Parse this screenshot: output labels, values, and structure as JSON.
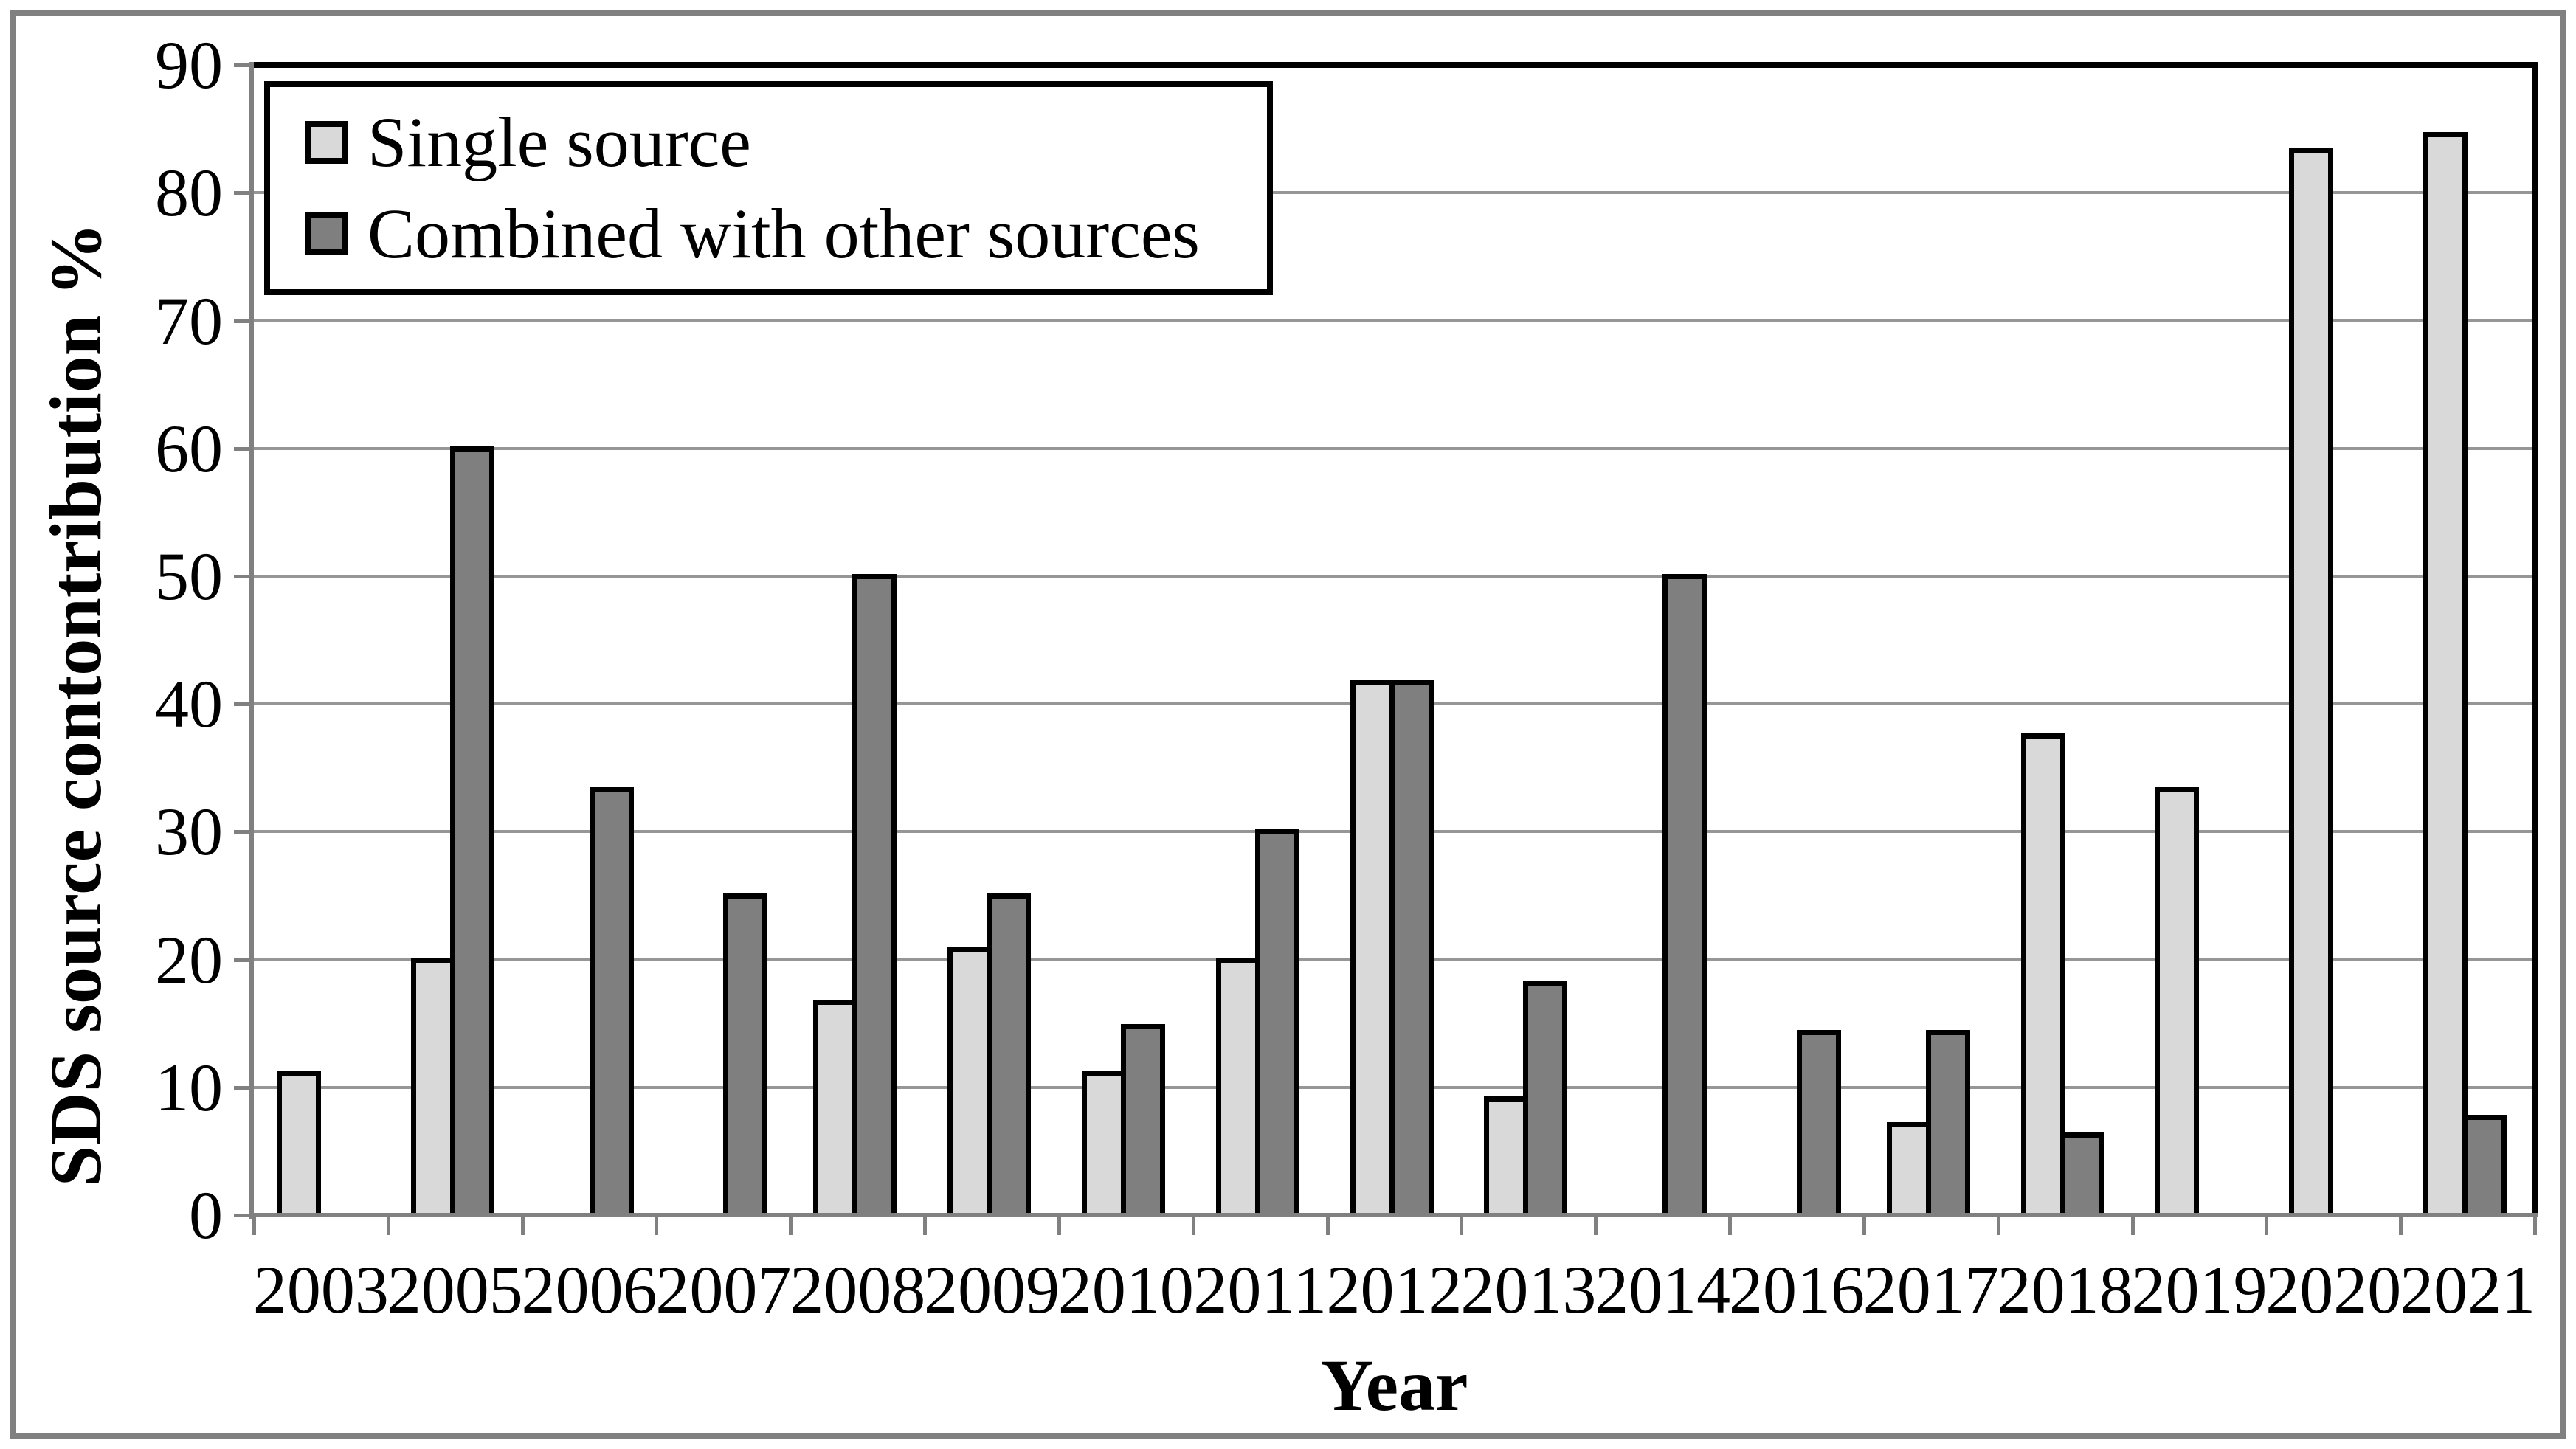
{
  "chart_data": {
    "type": "bar",
    "title": "",
    "xlabel": "Year",
    "ylabel": "SDS source contontribution %",
    "ylim": [
      0,
      90
    ],
    "ytick_interval": 10,
    "ytick_labels": [
      "0",
      "10",
      "20",
      "30",
      "40",
      "50",
      "60",
      "70",
      "80",
      "90"
    ],
    "grid": true,
    "legend_position": "top-left",
    "categories": [
      "2003",
      "2005",
      "2006",
      "2007",
      "2008",
      "2009",
      "2010",
      "2011",
      "2012",
      "2013",
      "2014",
      "2016",
      "2017",
      "2018",
      "2019",
      "2020",
      "2021"
    ],
    "series": [
      {
        "name": "Single source",
        "color": "#d9d9d9",
        "values": [
          11.1,
          20,
          null,
          null,
          16.7,
          20.8,
          11.1,
          20,
          41.7,
          9.1,
          null,
          null,
          7.1,
          37.5,
          33.3,
          83.3,
          84.6
        ]
      },
      {
        "name": "Combined with other sources",
        "color": "#7f7f7f",
        "values": [
          null,
          60,
          33.3,
          25,
          50,
          25,
          14.8,
          30,
          41.7,
          18.2,
          50,
          14.3,
          14.3,
          6.3,
          null,
          null,
          7.7
        ]
      }
    ],
    "colors": {
      "bar_outline": "#000000",
      "gridline": "#969696",
      "axis": "#808080",
      "figure_border": "#808080",
      "background": "#ffffff",
      "text": "#000000"
    }
  }
}
